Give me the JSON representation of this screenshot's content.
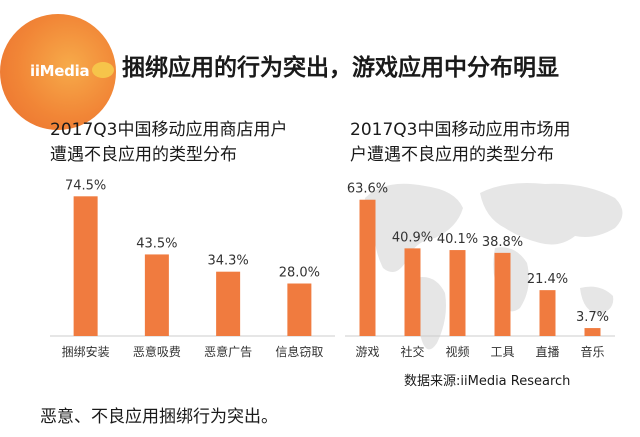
{
  "brand": {
    "logo_text": "iiMedia"
  },
  "headline": "捆绑应用的行为突出，游戏应用中分布明显",
  "colors": {
    "bar": "#f07b3f",
    "axis": "#cccccc",
    "label": "#333333"
  },
  "chart_data": [
    {
      "type": "bar",
      "title_line1": "2017Q3中国移动应用商店用户",
      "title_line2": "遭遇不良应用的类型分布",
      "categories": [
        "捆绑安装",
        "恶意吸费",
        "恶意广告",
        "信息窃取"
      ],
      "values": [
        74.5,
        43.5,
        34.3,
        28.0
      ],
      "value_labels": [
        "74.5%",
        "43.5%",
        "34.3%",
        "28.0%"
      ],
      "ylim": [
        0,
        80
      ]
    },
    {
      "type": "bar",
      "title_line1": "2017Q3中国移动应用市场用",
      "title_line2": "户遭遇不良应用的类型分布",
      "categories": [
        "游戏",
        "社交",
        "视频",
        "工具",
        "直播",
        "音乐"
      ],
      "values": [
        63.6,
        40.9,
        40.1,
        38.8,
        21.4,
        3.7
      ],
      "value_labels": [
        "63.6%",
        "40.9%",
        "40.1%",
        "38.8%",
        "21.4%",
        "3.7%"
      ],
      "ylim": [
        0,
        70
      ]
    }
  ],
  "source": "数据来源:iiMedia Research",
  "footnote": "恶意、不良应用捆绑行为突出。"
}
